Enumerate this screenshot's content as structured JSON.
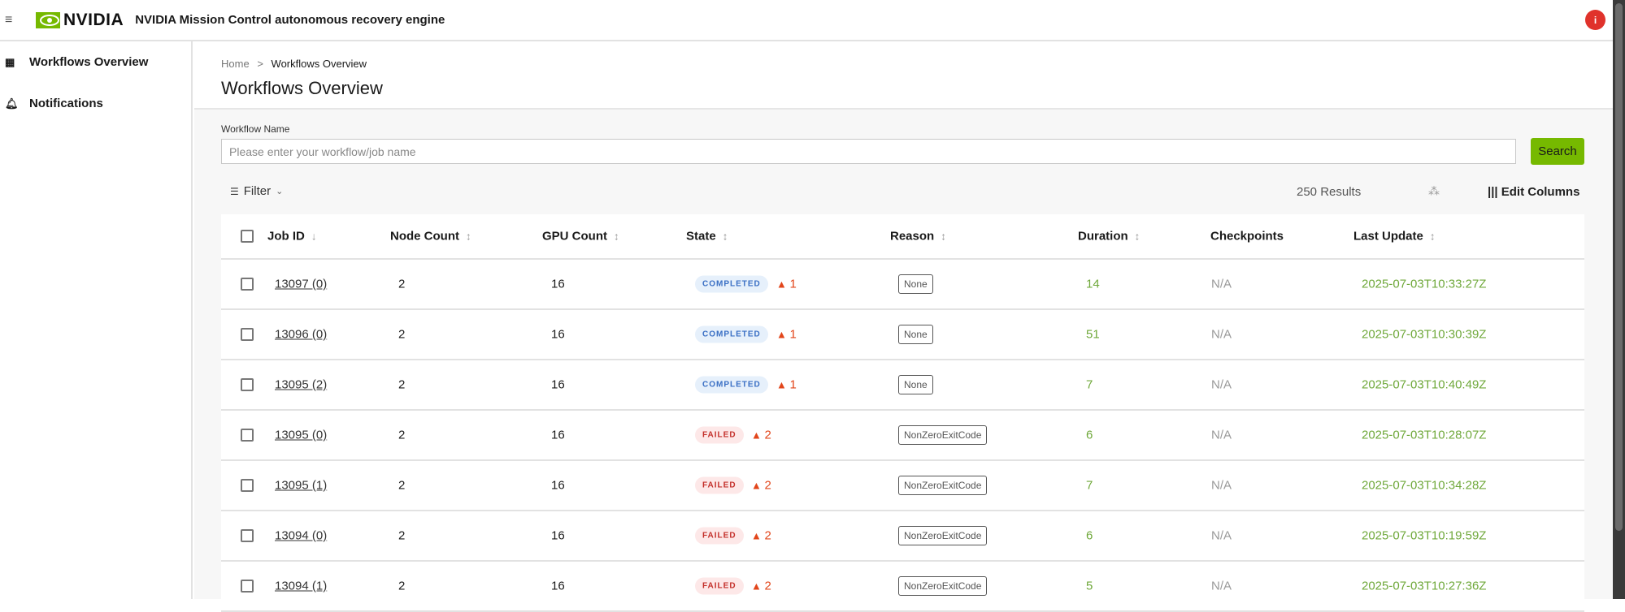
{
  "header": {
    "menu_icon": "hamburger-icon",
    "logo_text": "NVIDIA",
    "title": "NVIDIA Mission Control autonomous recovery engine",
    "avatar_icon": "user-icon",
    "brand_color": "#76b900"
  },
  "sidebar": {
    "items": [
      {
        "label": "Workflows Overview",
        "icon": "dashboard-icon"
      },
      {
        "label": "Notifications",
        "icon": "bell-icon"
      }
    ]
  },
  "breadcrumb": {
    "home": "Home",
    "sep": ">",
    "current": "Workflows Overview"
  },
  "page_title": "Workflows Overview",
  "search": {
    "label": "Workflow Name",
    "placeholder": "Please enter your workflow/job name",
    "value": "",
    "button": "Search"
  },
  "toolbar": {
    "filter": "Filter",
    "results": "250 Results",
    "edit_columns": "Edit Columns"
  },
  "table": {
    "columns": [
      "Job ID",
      "Node Count",
      "GPU Count",
      "State",
      "Reason",
      "Duration",
      "Checkpoints",
      "Last Update"
    ],
    "rows": [
      {
        "job_id": "13097 (0)",
        "nodes": "2",
        "gpus": "16",
        "state": "COMPLETED",
        "warnings": "1",
        "reason": "None",
        "duration": "14",
        "checkpoints": "N/A",
        "last_update": "2025-07-03T10:33:27Z"
      },
      {
        "job_id": "13096 (0)",
        "nodes": "2",
        "gpus": "16",
        "state": "COMPLETED",
        "warnings": "1",
        "reason": "None",
        "duration": "51",
        "checkpoints": "N/A",
        "last_update": "2025-07-03T10:30:39Z"
      },
      {
        "job_id": "13095 (2)",
        "nodes": "2",
        "gpus": "16",
        "state": "COMPLETED",
        "warnings": "1",
        "reason": "None",
        "duration": "7",
        "checkpoints": "N/A",
        "last_update": "2025-07-03T10:40:49Z"
      },
      {
        "job_id": "13095 (0)",
        "nodes": "2",
        "gpus": "16",
        "state": "FAILED",
        "warnings": "2",
        "reason": "NonZeroExitCode",
        "duration": "6",
        "checkpoints": "N/A",
        "last_update": "2025-07-03T10:28:07Z"
      },
      {
        "job_id": "13095 (1)",
        "nodes": "2",
        "gpus": "16",
        "state": "FAILED",
        "warnings": "2",
        "reason": "NonZeroExitCode",
        "duration": "7",
        "checkpoints": "N/A",
        "last_update": "2025-07-03T10:34:28Z"
      },
      {
        "job_id": "13094 (0)",
        "nodes": "2",
        "gpus": "16",
        "state": "FAILED",
        "warnings": "2",
        "reason": "NonZeroExitCode",
        "duration": "6",
        "checkpoints": "N/A",
        "last_update": "2025-07-03T10:19:59Z"
      },
      {
        "job_id": "13094 (1)",
        "nodes": "2",
        "gpus": "16",
        "state": "FAILED",
        "warnings": "2",
        "reason": "NonZeroExitCode",
        "duration": "5",
        "checkpoints": "N/A",
        "last_update": "2025-07-03T10:27:36Z"
      }
    ]
  }
}
